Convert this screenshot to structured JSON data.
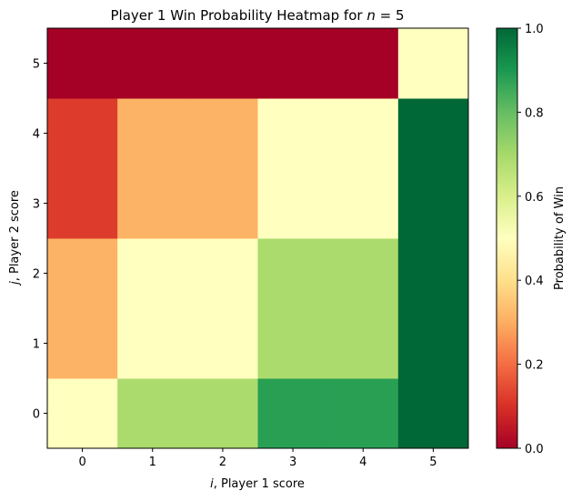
{
  "chart_data": {
    "type": "heatmap",
    "title": "Player 1 Win Probability Heatmap for n = 5",
    "xlabel": "i, Player 1 score",
    "ylabel": "j, Player 2 score",
    "x_categories": [
      "0",
      "1",
      "2",
      "3",
      "4",
      "5"
    ],
    "y_categories": [
      "0",
      "1",
      "2",
      "3",
      "4",
      "5"
    ],
    "values_by_row_j": [
      [
        0.5,
        0.69,
        0.69,
        0.88,
        0.88,
        1.0
      ],
      [
        0.31,
        0.5,
        0.5,
        0.69,
        0.69,
        1.0
      ],
      [
        0.31,
        0.5,
        0.5,
        0.69,
        0.69,
        1.0
      ],
      [
        0.12,
        0.31,
        0.31,
        0.5,
        0.5,
        1.0
      ],
      [
        0.12,
        0.31,
        0.31,
        0.5,
        0.5,
        1.0
      ],
      [
        0.0,
        0.0,
        0.0,
        0.0,
        0.0,
        0.5
      ]
    ],
    "colormap": "RdYlGn",
    "colorbar": {
      "label": "Probability of Win",
      "range": [
        0,
        1
      ],
      "ticks": [
        "0.0",
        "0.2",
        "0.4",
        "0.6",
        "0.8",
        "1.0"
      ]
    }
  },
  "title_parts": {
    "prefix": "Player 1 Win Probability Heatmap for ",
    "var": "n",
    "suffix": " = 5"
  },
  "xlabel_parts": {
    "var": "i",
    "rest": ", Player 1 score"
  },
  "ylabel_parts": {
    "var": "j",
    "rest": ", Player 2 score"
  }
}
